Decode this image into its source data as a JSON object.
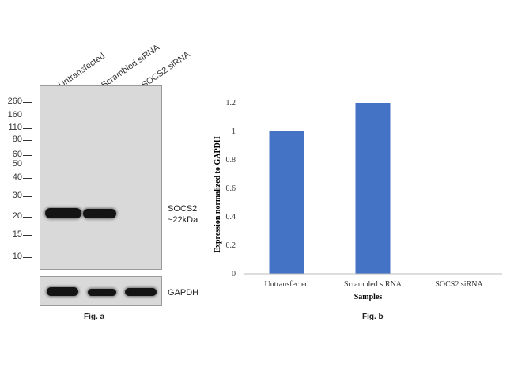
{
  "figure_a": {
    "lane_labels": [
      "Untransfected",
      "Scrambled siRNA",
      "SOCS2 siRNA"
    ],
    "markers": [
      "260",
      "160",
      "110",
      "80",
      "60",
      "50",
      "40",
      "30",
      "20",
      "15",
      "10"
    ],
    "target_label_line1": "SOCS2",
    "target_label_line2": "~22kDa",
    "loading_control_label": "GAPDH",
    "caption": "Fig. a"
  },
  "figure_b": {
    "caption": "Fig. b"
  },
  "colors": {
    "bar": "#4472C4",
    "band": "#141414",
    "blot_background": "#d9d9d9"
  },
  "chart_data": {
    "type": "bar",
    "categories": [
      "Untransfected",
      "Scrambled siRNA",
      "SOCS2 siRNA"
    ],
    "values": [
      1.0,
      1.2,
      0
    ],
    "title": "",
    "xlabel": "Samples",
    "ylabel": "Expression normalized to GAPDH",
    "ylim": [
      0,
      1.2
    ],
    "yticks": [
      "0",
      "0.2",
      "0.4",
      "0.6",
      "0.8",
      "1",
      "1.2"
    ],
    "grid": false,
    "legend": "none"
  }
}
